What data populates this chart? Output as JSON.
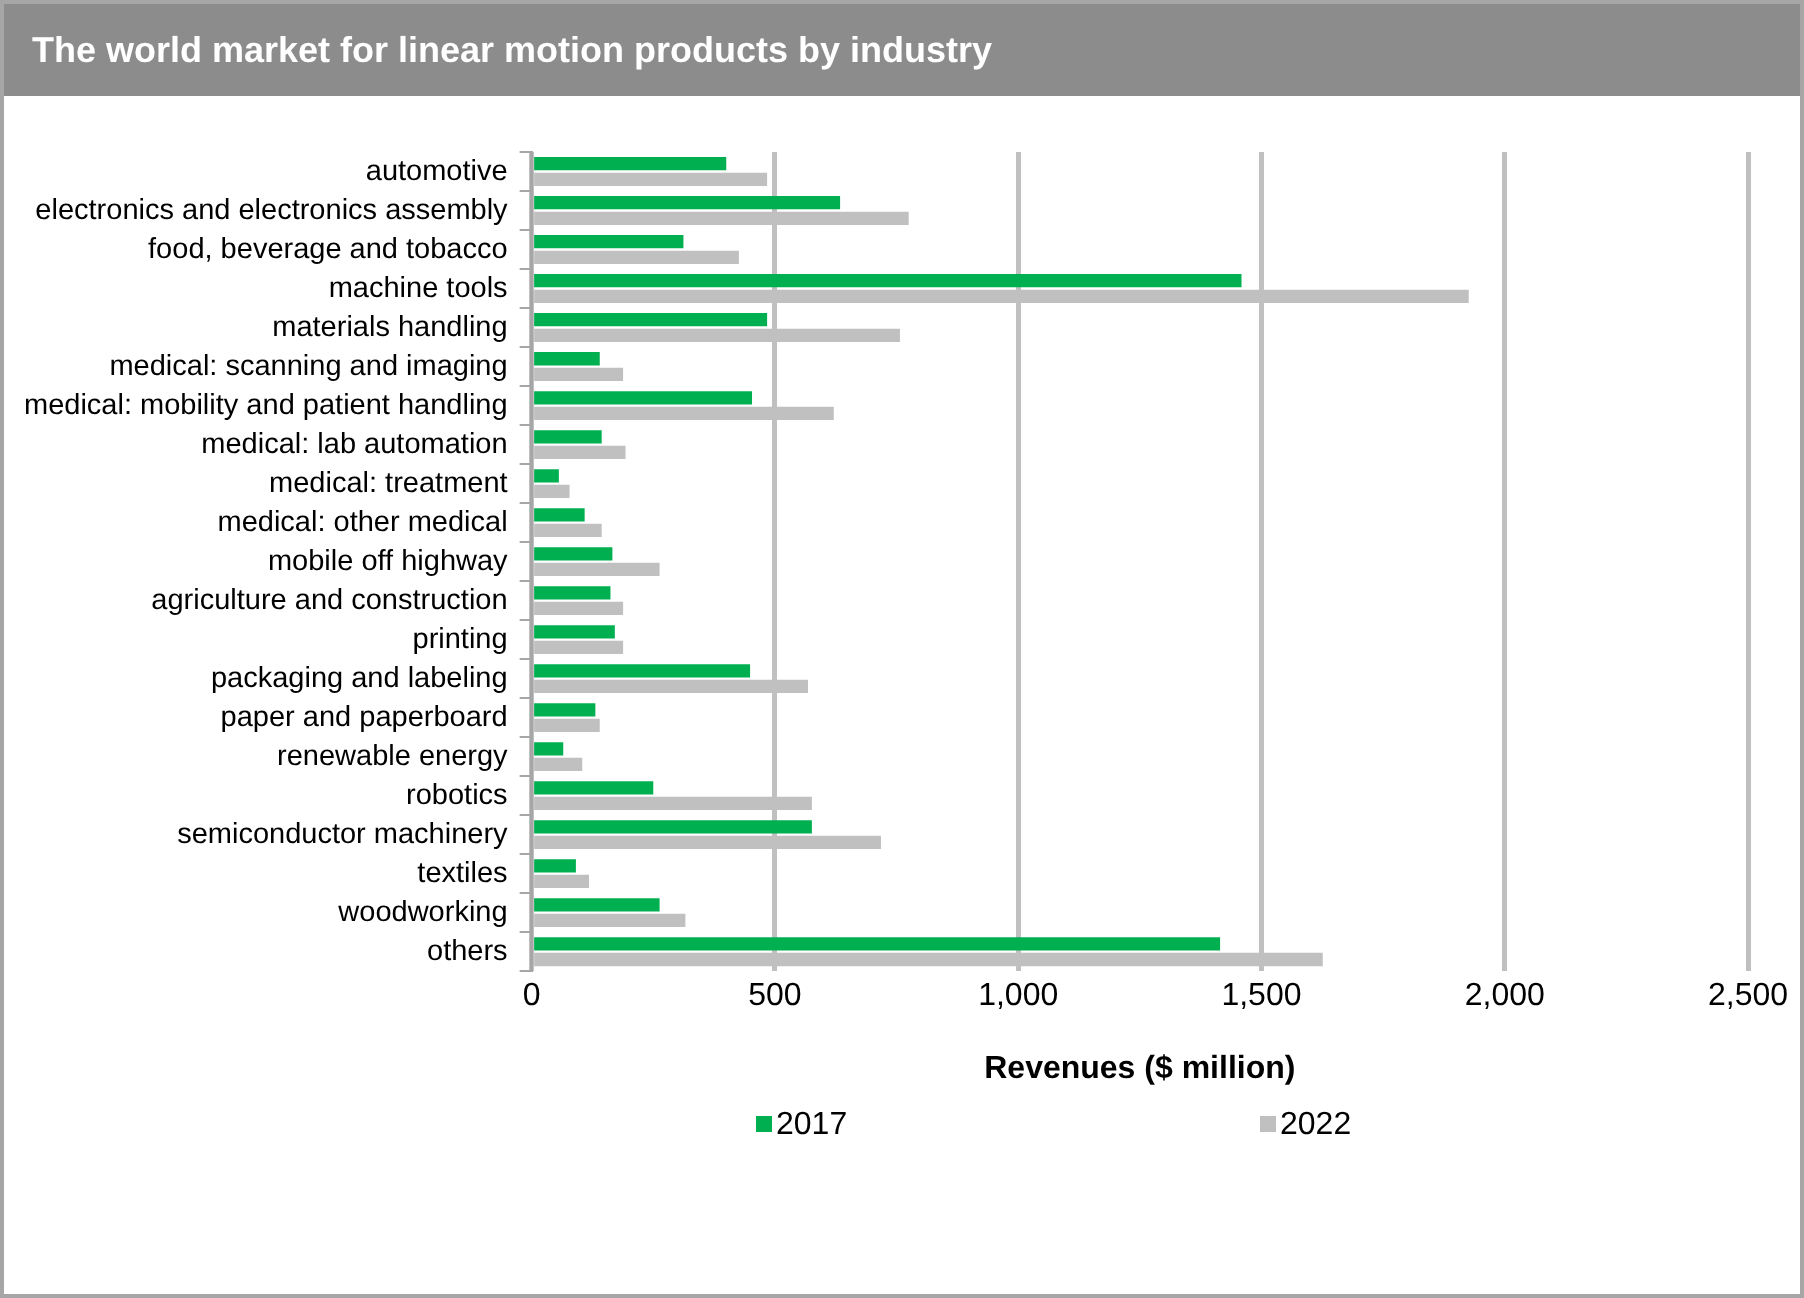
{
  "chart_data": {
    "type": "bar",
    "orientation": "horizontal",
    "title": "The world market for linear motion products by industry",
    "xlabel": "Revenues ($ million)",
    "categories": [
      "automotive",
      "electronics and electronics assembly",
      "food, beverage and tobacco",
      "machine tools",
      "materials handling",
      "medical: scanning and imaging",
      "medical: mobility and patient handling",
      "medical: lab automation",
      "medical: treatment",
      "medical: other medical",
      "mobile off highway",
      "agriculture and construction",
      "printing",
      "packaging and labeling",
      "paper and paperboard",
      "renewable energy",
      "robotics",
      "semiconductor machinery",
      "textiles",
      "woodworking",
      "others"
    ],
    "series": [
      {
        "name": "2017",
        "color": "#00b050",
        "values": [
          400,
          634,
          312,
          1459,
          484,
          140,
          453,
          144,
          56,
          109,
          166,
          162,
          171,
          449,
          131,
          65,
          250,
          576,
          91,
          263,
          1415
        ]
      },
      {
        "name": "2022",
        "color": "#c0c0c0",
        "values": [
          484,
          775,
          426,
          1926,
          757,
          188,
          621,
          193,
          78,
          144,
          263,
          188,
          188,
          568,
          140,
          104,
          576,
          718,
          118,
          316,
          1626
        ]
      }
    ],
    "xlim": [
      0,
      2500
    ],
    "xticks": [
      0,
      {
        "value": 500,
        "label": "500"
      },
      {
        "value": 1000,
        "label": "1,000"
      },
      {
        "value": 1500,
        "label": "1,500"
      },
      {
        "value": 2000,
        "label": "2,000"
      },
      {
        "value": 2500,
        "label": "2,500"
      }
    ],
    "grid": "x",
    "legend": "bottom"
  }
}
